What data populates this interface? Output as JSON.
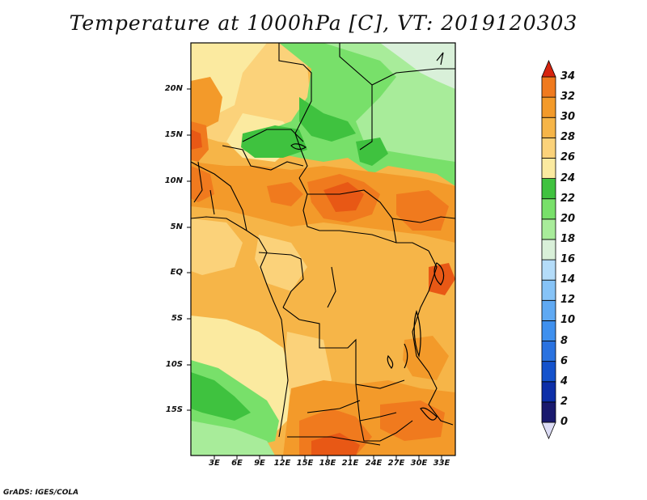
{
  "title": "Temperature at 1000hPa [C], VT: 2019120303",
  "footer": "GrADS: IGES/COLA",
  "lat_ticks": [
    "20N",
    "15N",
    "10N",
    "5N",
    "EQ",
    "5S",
    "10S",
    "15S"
  ],
  "lon_ticks": [
    "3E",
    "6E",
    "9E",
    "12E",
    "15E",
    "18E",
    "21E",
    "24E",
    "27E",
    "30E",
    "33E"
  ],
  "colorbar": {
    "labels": [
      "0",
      "2",
      "4",
      "6",
      "8",
      "10",
      "12",
      "14",
      "16",
      "18",
      "20",
      "22",
      "24",
      "26",
      "28",
      "30",
      "32",
      "34"
    ],
    "colors": [
      "#1a1a6e",
      "#0d2fa8",
      "#1452cc",
      "#2a72e0",
      "#3f90ee",
      "#5fa9f3",
      "#86c3f7",
      "#b4dcf9",
      "#d9f0d9",
      "#a8ec9a",
      "#78e06a",
      "#3fc23f",
      "#fbeaa0",
      "#fbd27a",
      "#f6b548",
      "#f39a2a",
      "#f07a1e",
      "#e85815",
      "#d6240f"
    ]
  },
  "colors": {
    "green_dark": "#3fc23f",
    "green_light": "#78e06a",
    "green_pale": "#a8ec9a",
    "yellow": "#fbeaa0",
    "orange_light": "#fbd27a",
    "orange": "#f6b548",
    "orange_dark": "#f39a2a",
    "red_orange": "#f07a1e",
    "red": "#e85815"
  }
}
